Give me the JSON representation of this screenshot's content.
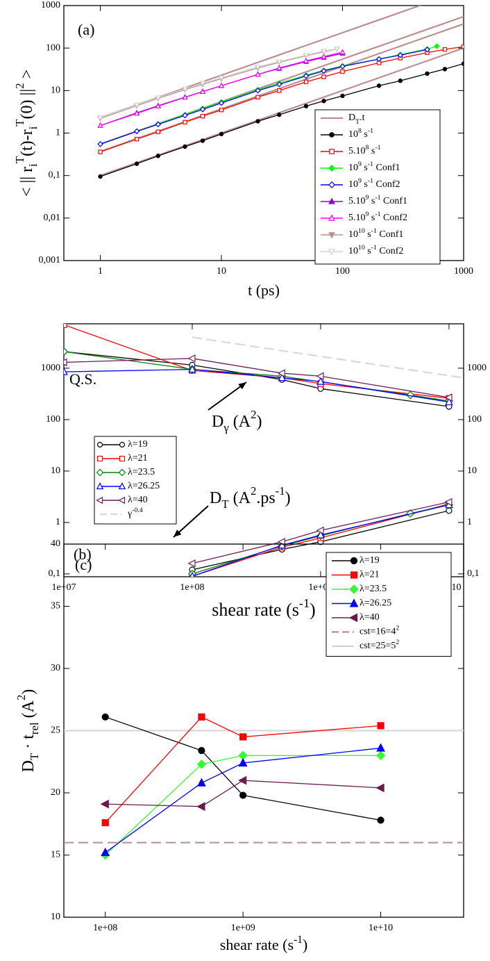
{
  "chart_data": [
    {
      "type": "line",
      "panel_label": "(a)",
      "xlabel": "t (ps)",
      "ylabel": "< || r_{i}^{T}(t)-r_{i}^{T}(0) ||^{2} >",
      "xscale": "log",
      "yscale": "log",
      "xlim": [
        0.5,
        1000
      ],
      "ylim": [
        0.001,
        1000
      ],
      "xticks": [
        1,
        10,
        100,
        1000
      ],
      "yticks": [
        {
          "value": 0.001,
          "label": "0,001"
        },
        {
          "value": 0.01,
          "label": "0,01"
        },
        {
          "value": 0.1,
          "label": "0,1"
        },
        1,
        10,
        100,
        1000
      ],
      "legend": "lower right",
      "series": [
        {
          "name": "D_{T}.t",
          "color": "#bc8f8f",
          "marker": "none",
          "x": [
            1,
            1000
          ],
          "values": [
            0.1,
            100
          ]
        },
        {
          "color": "#bc8f8f",
          "marker": "none",
          "x": [
            1,
            1000
          ],
          "values": [
            0.37,
            370
          ]
        },
        {
          "color": "#bc8f8f",
          "marker": "none",
          "x": [
            1,
            1000
          ],
          "values": [
            0.55,
            550
          ]
        },
        {
          "color": "#bc8f8f",
          "marker": "none",
          "x": [
            1,
            1000
          ],
          "values": [
            2.3,
            2300
          ]
        },
        {
          "name": "10^{8} s^{-1}",
          "color": "#000000",
          "marker": "circle",
          "filled": true,
          "x": [
            1,
            2,
            3,
            5,
            7,
            10,
            20,
            30,
            50,
            70,
            100,
            200,
            300,
            500,
            700,
            1000
          ],
          "values": [
            0.095,
            0.19,
            0.29,
            0.48,
            0.66,
            0.95,
            1.9,
            2.7,
            4.3,
            5.7,
            7.5,
            13,
            17,
            25,
            32,
            43
          ]
        },
        {
          "name": "5.10^{8} s^{-1}",
          "color": "#ff0000",
          "marker": "square",
          "filled": false,
          "x": [
            1,
            2,
            3,
            5,
            7,
            10,
            20,
            30,
            50,
            70,
            100,
            200,
            300,
            500,
            700,
            1000
          ],
          "values": [
            0.36,
            0.72,
            1.07,
            1.8,
            2.5,
            3.5,
            7,
            10,
            16,
            21,
            28,
            45,
            58,
            78,
            93,
            108
          ]
        },
        {
          "name": "10^{9} s^{-1} Conf1",
          "color": "#00ff00",
          "marker": "diamond",
          "filled": true,
          "x": [
            1,
            2,
            3,
            5,
            7,
            10,
            20,
            30,
            50,
            70,
            100,
            200,
            300,
            500,
            600
          ],
          "values": [
            0.55,
            1.1,
            1.65,
            2.7,
            3.8,
            5.4,
            10.5,
            15,
            23,
            30,
            38,
            55,
            70,
            95,
            110
          ]
        },
        {
          "name": "10^{9} s^{-1} Conf2",
          "color": "#0000ff",
          "marker": "diamond",
          "filled": false,
          "x": [
            1,
            2,
            3,
            5,
            7,
            10,
            20,
            30,
            50,
            70,
            100,
            200,
            300,
            500
          ],
          "values": [
            0.55,
            1.1,
            1.6,
            2.6,
            3.6,
            5.1,
            10,
            14,
            22,
            29,
            37,
            55,
            68,
            92
          ]
        },
        {
          "name": "5.10^{9} s^{-1} Conf1",
          "color": "#9400d3",
          "marker": "triangle-up",
          "filled": true,
          "x": [
            1,
            2,
            3,
            5,
            7,
            10,
            20,
            30,
            50,
            70,
            100
          ],
          "values": [
            1.5,
            3,
            4.4,
            7,
            9.5,
            13,
            24,
            33,
            48,
            60,
            75
          ]
        },
        {
          "name": "5.10^{9} s^{-1} Conf2",
          "color": "#ff00ff",
          "marker": "triangle-up",
          "filled": false,
          "x": [
            1,
            2,
            3,
            5,
            7,
            10,
            20,
            30,
            50,
            70,
            100
          ],
          "values": [
            1.5,
            2.9,
            4.3,
            6.9,
            9.4,
            13,
            24,
            34,
            50,
            63,
            80
          ]
        },
        {
          "name": "10^{10} s^{-1} Conf1",
          "color": "#bc8f8f",
          "marker": "triangle-down",
          "filled": true,
          "x": [
            1,
            2,
            3,
            5,
            7,
            10,
            20,
            30,
            50,
            70,
            90
          ],
          "values": [
            2.2,
            4.4,
            6.5,
            10.5,
            14,
            19,
            34,
            46,
            66,
            82,
            95
          ]
        },
        {
          "name": "10^{10} s^{-1} Conf2",
          "color": "#d3d3d3",
          "marker": "triangle-down",
          "filled": false,
          "x": [
            1,
            2,
            3,
            5,
            7,
            10,
            20,
            30,
            50,
            70,
            90
          ],
          "values": [
            2.3,
            4.6,
            6.8,
            11,
            15,
            20,
            36,
            48,
            68,
            85,
            96
          ]
        }
      ]
    },
    {
      "type": "line",
      "panel_label": "(b)",
      "xlabel": "shear rate (s^{-1})",
      "xscale": "log",
      "yscale": "log",
      "xlim": [
        10000000,
        13000000000
      ],
      "ylim": [
        0.088,
        7300
      ],
      "xticks": [
        {
          "value": 10000000,
          "label": "1e+07"
        },
        {
          "value": 100000000,
          "label": "1e+08"
        },
        {
          "value": 1000000000,
          "label": "1e+09"
        },
        {
          "value": 10000000000,
          "label": "1e+10"
        }
      ],
      "yticks": [
        {
          "value": 0.1,
          "label": "0,1"
        },
        1,
        10,
        100,
        1000
      ],
      "right_axis_labels": true,
      "legend": "lower left",
      "annotations": [
        "Q.S.",
        "D_{γ} (A^{2})",
        "D_{T} (A^{2}.ps^{-1})"
      ],
      "series": [
        {
          "name": "λ=19",
          "color": "#000000",
          "marker": "circle",
          "filled": false,
          "x": [
            10000000,
            100000000,
            500000000,
            1000000000,
            10000000000
          ],
          "values": [
            2100,
            1150,
            600,
            400,
            180
          ],
          "x_t": [
            100000000,
            500000000,
            1000000000,
            10000000000
          ],
          "values_t": [
            0.12,
            0.3,
            0.42,
            1.7
          ]
        },
        {
          "name": "λ=21",
          "color": "#ff0000",
          "marker": "square",
          "filled": false,
          "x": [
            10000000,
            100000000,
            500000000,
            1000000000,
            10000000000
          ],
          "values": [
            7000,
            900,
            650,
            500,
            260
          ],
          "x_t": [
            100000000,
            500000000,
            1000000000,
            10000000000
          ],
          "values_t": [
            0.09,
            0.33,
            0.5,
            2.3
          ]
        },
        {
          "name": "λ=23.5",
          "color": "#008000",
          "marker": "diamond",
          "filled": false,
          "x": [
            10000000,
            100000000,
            500000000,
            5000000000,
            10000000000
          ],
          "values": [
            2100,
            950,
            700,
            300,
            230
          ],
          "x_t": [
            100000000,
            500000000,
            1000000000,
            5000000000,
            10000000000
          ],
          "values_t": [
            0.1,
            0.35,
            0.55,
            1.5,
            2.2
          ]
        },
        {
          "name": "λ=26.25",
          "color": "#0000ff",
          "marker": "triangle-up",
          "filled": false,
          "x": [
            10000000,
            100000000,
            500000000,
            1000000000,
            10000000000
          ],
          "values": [
            850,
            950,
            650,
            550,
            220
          ],
          "x_t": [
            100000000,
            500000000,
            1000000000,
            10000000000
          ],
          "values_t": [
            0.09,
            0.36,
            0.57,
            2.2
          ]
        },
        {
          "name": "λ=40",
          "color": "#6b1e5a",
          "marker": "triangle-left",
          "filled": false,
          "x": [
            10000000,
            100000000,
            500000000,
            1000000000,
            10000000000
          ],
          "values": [
            1300,
            1550,
            800,
            700,
            270
          ],
          "x_t": [
            100000000,
            500000000,
            1000000000,
            10000000000
          ],
          "values_t": [
            0.16,
            0.42,
            0.7,
            2.5
          ]
        },
        {
          "name": "γ^{-0.4}",
          "color": "#d8d8d8",
          "marker": "none",
          "dashed": true,
          "x": [
            100000000,
            13000000000
          ],
          "values": [
            4000,
            650
          ]
        }
      ]
    },
    {
      "type": "line",
      "panel_label": "(c)",
      "xlabel": "shear rate (s^{-1})",
      "ylabel": "D_{T} · t_{rel}  (A^{2})",
      "xscale": "log",
      "xlim": [
        50000000,
        40000000000
      ],
      "ylim": [
        10,
        40
      ],
      "xticks": [
        {
          "value": 100000000,
          "label": "1e+08"
        },
        {
          "value": 1000000000,
          "label": "1e+09"
        },
        {
          "value": 10000000000,
          "label": "1e+10"
        }
      ],
      "yticks": [
        10,
        15,
        20,
        25,
        30,
        35,
        40
      ],
      "legend": "upper right",
      "series": [
        {
          "name": "λ=19",
          "color": "#000000",
          "marker": "circle",
          "filled": true,
          "x": [
            100000000,
            500000000,
            1000000000,
            10000000000
          ],
          "values": [
            26.1,
            23.4,
            19.8,
            17.8
          ]
        },
        {
          "name": "λ=21",
          "color": "#ff0000",
          "marker": "square",
          "filled": true,
          "x": [
            100000000,
            500000000,
            1000000000,
            10000000000
          ],
          "values": [
            17.6,
            26.1,
            24.5,
            25.4
          ]
        },
        {
          "name": "λ=23.5",
          "color": "#33ff33",
          "marker": "diamond",
          "filled": true,
          "x": [
            100000000,
            500000000,
            1000000000,
            10000000000
          ],
          "values": [
            15.0,
            22.3,
            23.0,
            23.0
          ]
        },
        {
          "name": " λ=26.25",
          "color": "#0000ff",
          "marker": "triangle-up",
          "filled": true,
          "x": [
            100000000,
            500000000,
            1000000000,
            10000000000
          ],
          "values": [
            15.2,
            20.8,
            22.4,
            23.6
          ]
        },
        {
          "name": "λ=40",
          "color": "#6a1b4d",
          "marker": "triangle-left",
          "filled": true,
          "x": [
            100000000,
            500000000,
            1000000000,
            10000000000
          ],
          "values": [
            19.1,
            18.9,
            21.0,
            20.4
          ]
        }
      ],
      "hlines": [
        {
          "name": "cst=16=4^{2}",
          "value": 16,
          "color": "#bc8f8f",
          "dashed": true
        },
        {
          "name": "cst=25=5^{2}",
          "value": 25,
          "color": "#d3d3d3",
          "dashed": false
        }
      ]
    }
  ]
}
